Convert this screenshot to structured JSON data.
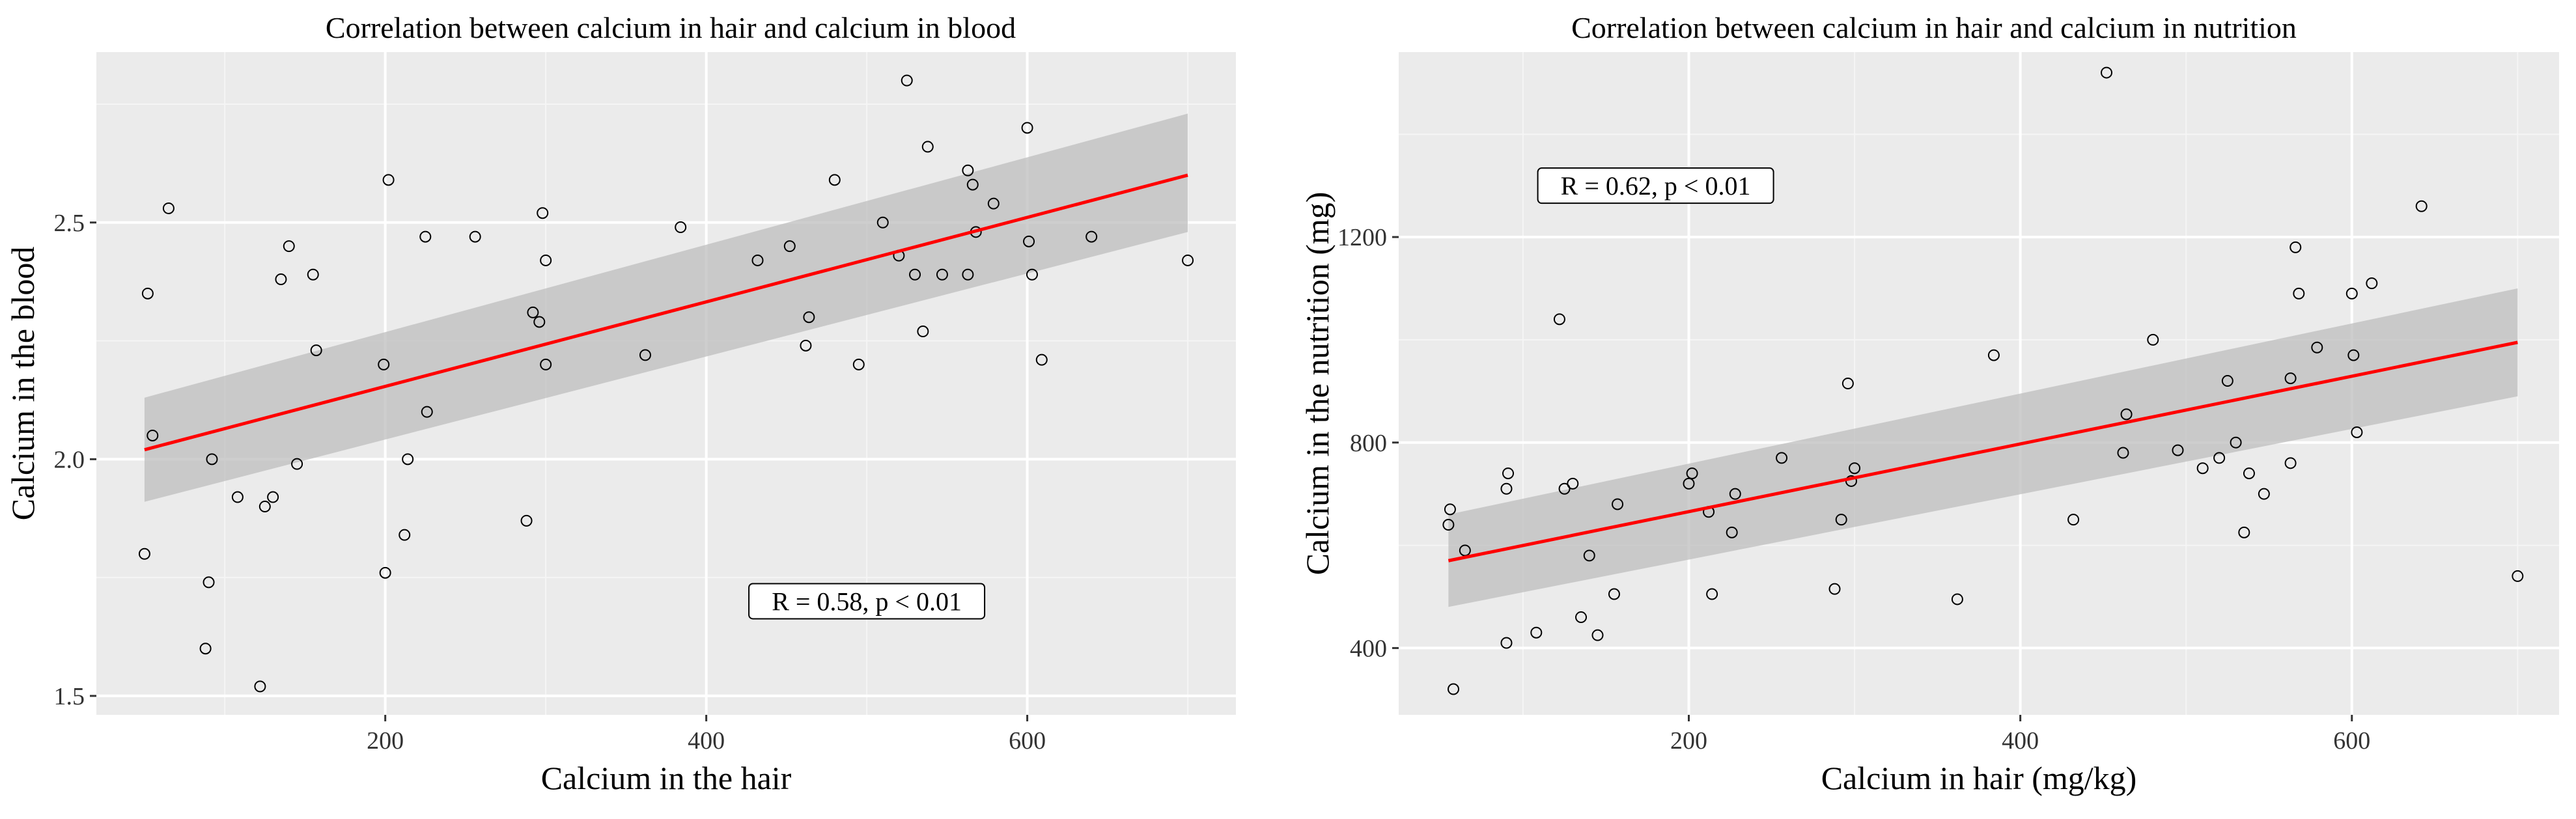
{
  "chart_data": [
    {
      "type": "scatter",
      "title": "Correlation between calcium in hair and calcium in blood",
      "xlabel": "Calcium in the hair",
      "ylabel": "Calcium in the blood",
      "xlim": [
        20,
        730
      ],
      "ylim": [
        1.46,
        2.86
      ],
      "xticks": [
        200,
        400,
        600
      ],
      "yticks": [
        1.5,
        2.0,
        2.5
      ],
      "ytick_labels": [
        "1.5",
        "2.0",
        "2.5"
      ],
      "grid": true,
      "annotation": {
        "text": "R = 0.58, p < 0.01",
        "x": 500,
        "y": 1.7
      },
      "fit": {
        "x": [
          50,
          700
        ],
        "y": [
          2.02,
          2.6
        ],
        "ci_lower": [
          1.91,
          2.48
        ],
        "ci_upper": [
          2.13,
          2.73
        ],
        "color": "#ff0000"
      },
      "points": [
        {
          "x": 50,
          "y": 1.8
        },
        {
          "x": 52,
          "y": 2.35
        },
        {
          "x": 55,
          "y": 2.05
        },
        {
          "x": 65,
          "y": 2.53
        },
        {
          "x": 88,
          "y": 1.6
        },
        {
          "x": 90,
          "y": 1.74
        },
        {
          "x": 92,
          "y": 2.0
        },
        {
          "x": 108,
          "y": 1.92
        },
        {
          "x": 122,
          "y": 1.52
        },
        {
          "x": 125,
          "y": 1.9
        },
        {
          "x": 130,
          "y": 1.92
        },
        {
          "x": 135,
          "y": 2.38
        },
        {
          "x": 140,
          "y": 2.45
        },
        {
          "x": 145,
          "y": 1.99
        },
        {
          "x": 155,
          "y": 2.39
        },
        {
          "x": 157,
          "y": 2.23
        },
        {
          "x": 199,
          "y": 2.2
        },
        {
          "x": 200,
          "y": 1.76
        },
        {
          "x": 202,
          "y": 2.59
        },
        {
          "x": 212,
          "y": 1.84
        },
        {
          "x": 214,
          "y": 2.0
        },
        {
          "x": 225,
          "y": 2.47
        },
        {
          "x": 226,
          "y": 2.1
        },
        {
          "x": 256,
          "y": 2.47
        },
        {
          "x": 288,
          "y": 1.87
        },
        {
          "x": 292,
          "y": 2.31
        },
        {
          "x": 296,
          "y": 2.29
        },
        {
          "x": 298,
          "y": 2.52
        },
        {
          "x": 300,
          "y": 2.42
        },
        {
          "x": 300,
          "y": 2.2
        },
        {
          "x": 362,
          "y": 2.22
        },
        {
          "x": 384,
          "y": 2.49
        },
        {
          "x": 432,
          "y": 2.42
        },
        {
          "x": 452,
          "y": 2.45
        },
        {
          "x": 462,
          "y": 2.24
        },
        {
          "x": 464,
          "y": 2.3
        },
        {
          "x": 480,
          "y": 2.59
        },
        {
          "x": 495,
          "y": 2.2
        },
        {
          "x": 510,
          "y": 2.5
        },
        {
          "x": 520,
          "y": 2.43
        },
        {
          "x": 525,
          "y": 2.8
        },
        {
          "x": 530,
          "y": 2.39
        },
        {
          "x": 535,
          "y": 2.27
        },
        {
          "x": 538,
          "y": 2.66
        },
        {
          "x": 547,
          "y": 2.39
        },
        {
          "x": 563,
          "y": 2.39
        },
        {
          "x": 563,
          "y": 2.61
        },
        {
          "x": 566,
          "y": 2.58
        },
        {
          "x": 568,
          "y": 2.48
        },
        {
          "x": 579,
          "y": 2.54
        },
        {
          "x": 600,
          "y": 2.7
        },
        {
          "x": 601,
          "y": 2.46
        },
        {
          "x": 603,
          "y": 2.39
        },
        {
          "x": 609,
          "y": 2.21
        },
        {
          "x": 640,
          "y": 2.47
        },
        {
          "x": 700,
          "y": 2.42
        }
      ]
    },
    {
      "type": "scatter",
      "title": "Correlation between calcium in hair and calcium in nutrition",
      "xlabel": "Calcium in hair (mg/kg)",
      "ylabel": "Calcium in the nutrition (mg)",
      "xlim": [
        25,
        725
      ],
      "ylim": [
        270,
        1560
      ],
      "xticks": [
        200,
        400,
        600
      ],
      "yticks": [
        400,
        800,
        1200
      ],
      "ytick_labels": [
        "400",
        "800",
        "1200"
      ],
      "grid": true,
      "annotation": {
        "text": "R = 0.62, p < 0.01",
        "x": 180,
        "y": 1300
      },
      "fit": {
        "x": [
          55,
          700
        ],
        "y": [
          570,
          995
        ],
        "ci_lower": [
          480,
          890
        ],
        "ci_upper": [
          660,
          1100
        ],
        "color": "#ff0000"
      },
      "points": [
        {
          "x": 55,
          "y": 640
        },
        {
          "x": 56,
          "y": 670
        },
        {
          "x": 58,
          "y": 320
        },
        {
          "x": 65,
          "y": 590
        },
        {
          "x": 90,
          "y": 410
        },
        {
          "x": 90,
          "y": 710
        },
        {
          "x": 91,
          "y": 740
        },
        {
          "x": 108,
          "y": 430
        },
        {
          "x": 122,
          "y": 1040
        },
        {
          "x": 125,
          "y": 710
        },
        {
          "x": 130,
          "y": 720
        },
        {
          "x": 135,
          "y": 460
        },
        {
          "x": 140,
          "y": 580
        },
        {
          "x": 145,
          "y": 425
        },
        {
          "x": 155,
          "y": 505
        },
        {
          "x": 157,
          "y": 680
        },
        {
          "x": 200,
          "y": 720
        },
        {
          "x": 202,
          "y": 740
        },
        {
          "x": 212,
          "y": 665
        },
        {
          "x": 214,
          "y": 505
        },
        {
          "x": 226,
          "y": 625
        },
        {
          "x": 228,
          "y": 700
        },
        {
          "x": 256,
          "y": 770
        },
        {
          "x": 288,
          "y": 515
        },
        {
          "x": 292,
          "y": 650
        },
        {
          "x": 296,
          "y": 915
        },
        {
          "x": 298,
          "y": 725
        },
        {
          "x": 300,
          "y": 750
        },
        {
          "x": 362,
          "y": 495
        },
        {
          "x": 384,
          "y": 970
        },
        {
          "x": 432,
          "y": 650
        },
        {
          "x": 452,
          "y": 1520
        },
        {
          "x": 462,
          "y": 780
        },
        {
          "x": 464,
          "y": 855
        },
        {
          "x": 480,
          "y": 1000
        },
        {
          "x": 495,
          "y": 785
        },
        {
          "x": 510,
          "y": 750
        },
        {
          "x": 520,
          "y": 770
        },
        {
          "x": 525,
          "y": 920
        },
        {
          "x": 530,
          "y": 800
        },
        {
          "x": 535,
          "y": 625
        },
        {
          "x": 538,
          "y": 740
        },
        {
          "x": 547,
          "y": 700
        },
        {
          "x": 563,
          "y": 760
        },
        {
          "x": 563,
          "y": 925
        },
        {
          "x": 566,
          "y": 1180
        },
        {
          "x": 568,
          "y": 1090
        },
        {
          "x": 579,
          "y": 985
        },
        {
          "x": 600,
          "y": 1090
        },
        {
          "x": 601,
          "y": 970
        },
        {
          "x": 603,
          "y": 820
        },
        {
          "x": 612,
          "y": 1110
        },
        {
          "x": 642,
          "y": 1260
        },
        {
          "x": 700,
          "y": 540
        }
      ]
    }
  ]
}
